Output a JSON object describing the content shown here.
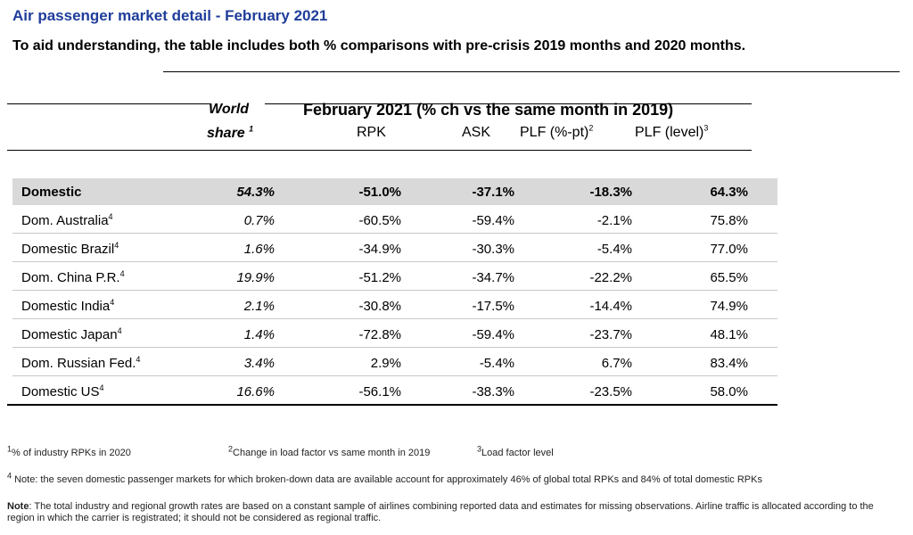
{
  "title": "Air passenger market detail - February 2021",
  "subtitle": "To aid understanding, the table includes both % comparisons with pre-crisis 2019 months and 2020 months.",
  "header": {
    "world_share_line1": "World",
    "world_share_line2": "share",
    "world_share_sup": "1",
    "period": "February 2021 (% ch vs the same month in 2019)",
    "col_rpk": "RPK",
    "col_ask": "ASK",
    "col_plf_pt": "PLF (%-pt)",
    "col_plf_pt_sup": "2",
    "col_plf_level": "PLF (level)",
    "col_plf_level_sup": "3"
  },
  "rows": [
    {
      "name": "Domestic",
      "sup": "",
      "share": "54.3%",
      "rpk": "-51.0%",
      "ask": "-37.1%",
      "plf_pt": "-18.3%",
      "plf_level": "64.3%"
    },
    {
      "name": "Dom. Australia",
      "sup": "4",
      "share": "0.7%",
      "rpk": "-60.5%",
      "ask": "-59.4%",
      "plf_pt": "-2.1%",
      "plf_level": "75.8%"
    },
    {
      "name": "Domestic Brazil",
      "sup": "4",
      "share": "1.6%",
      "rpk": "-34.9%",
      "ask": "-30.3%",
      "plf_pt": "-5.4%",
      "plf_level": "77.0%"
    },
    {
      "name": "Dom. China P.R.",
      "sup": "4",
      "share": "19.9%",
      "rpk": "-51.2%",
      "ask": "-34.7%",
      "plf_pt": "-22.2%",
      "plf_level": "65.5%"
    },
    {
      "name": "Domestic India",
      "sup": "4",
      "share": "2.1%",
      "rpk": "-30.8%",
      "ask": "-17.5%",
      "plf_pt": "-14.4%",
      "plf_level": "74.9%"
    },
    {
      "name": "Domestic Japan",
      "sup": "4",
      "share": "1.4%",
      "rpk": "-72.8%",
      "ask": "-59.4%",
      "plf_pt": "-23.7%",
      "plf_level": "48.1%"
    },
    {
      "name": "Dom. Russian Fed.",
      "sup": "4",
      "share": "3.4%",
      "rpk": "2.9%",
      "ask": "-5.4%",
      "plf_pt": "6.7%",
      "plf_level": "83.4%"
    },
    {
      "name": "Domestic US",
      "sup": "4",
      "share": "16.6%",
      "rpk": "-56.1%",
      "ask": "-38.3%",
      "plf_pt": "-23.5%",
      "plf_level": "58.0%"
    }
  ],
  "footnotes": {
    "fn1_sup": "1",
    "fn1": "% of industry RPKs in 2020",
    "fn2_sup": "2",
    "fn2": "Change in load factor vs same month in 2019",
    "fn3_sup": "3",
    "fn3": "Load factor level",
    "fn4_sup": "4",
    "fn4": " Note: the seven domestic passenger markets for which broken-down data are available account for approximately 46% of global total RPKs and 84% of total domestic RPKs",
    "note_label": "Note",
    "note_text": ": The total industry and regional growth rates are based on a constant sample of airlines combining reported data and estimates for missing observations. Airline traffic is allocated according to the region in which the carrier is registrated; it should not be considered as regional traffic."
  }
}
